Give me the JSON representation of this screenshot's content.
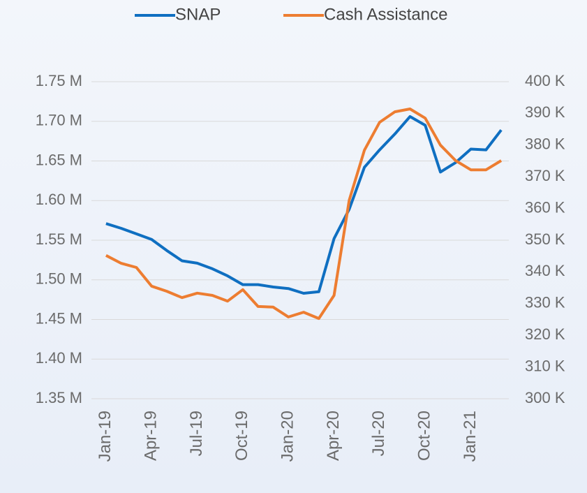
{
  "chart_data": {
    "type": "line",
    "categories": [
      "Jan-19",
      null,
      null,
      "Apr-19",
      null,
      null,
      "Jul-19",
      null,
      null,
      "Oct-19",
      null,
      null,
      "Jan-20",
      null,
      null,
      "Apr-20",
      null,
      null,
      "Jul-20",
      null,
      null,
      "Oct-20",
      null,
      null,
      "Jan-21",
      null,
      null
    ],
    "series": [
      {
        "name": "SNAP",
        "color": "#0f6fc1",
        "values": [
          1571000,
          1565000,
          1558000,
          1551000,
          1537000,
          1524000,
          1521000,
          1514000,
          1505000,
          1494000,
          1494000,
          1491000,
          1489000,
          1483000,
          1485000,
          1552000,
          1589000,
          1642000,
          1664000,
          1684000,
          1706000,
          1695000,
          1636000,
          1648000,
          1665000,
          1664000,
          1689000
        ]
      },
      {
        "name": "Cash Assistance",
        "color": "#ed7d31",
        "axis": "y2",
        "values": [
          345200,
          342700,
          341400,
          335500,
          333900,
          331900,
          333300,
          332600,
          330800,
          334400,
          329100,
          328900,
          325800,
          327300,
          325300,
          332600,
          362600,
          378400,
          387200,
          390500,
          391400,
          388500,
          380000,
          375100,
          372200,
          372200,
          375100
        ]
      }
    ],
    "ylim": [
      1350000,
      1750000
    ],
    "yticks": [
      {
        "value": 1350000,
        "label": "1.35 M"
      },
      {
        "value": 1400000,
        "label": "1.40 M"
      },
      {
        "value": 1450000,
        "label": "1.45 M"
      },
      {
        "value": 1500000,
        "label": "1.50 M"
      },
      {
        "value": 1550000,
        "label": "1.55 M"
      },
      {
        "value": 1600000,
        "label": "1.60 M"
      },
      {
        "value": 1650000,
        "label": "1.65 M"
      },
      {
        "value": 1700000,
        "label": "1.70 M"
      },
      {
        "value": 1750000,
        "label": "1.75 M"
      }
    ],
    "y2lim": [
      300000,
      400000
    ],
    "y2ticks": [
      {
        "value": 300000,
        "label": "300 K"
      },
      {
        "value": 310000,
        "label": "310 K"
      },
      {
        "value": 320000,
        "label": "320 K"
      },
      {
        "value": 330000,
        "label": "330 K"
      },
      {
        "value": 340000,
        "label": "340 K"
      },
      {
        "value": 350000,
        "label": "350 K"
      },
      {
        "value": 360000,
        "label": "360 K"
      },
      {
        "value": 370000,
        "label": "370 K"
      },
      {
        "value": 380000,
        "label": "380 K"
      },
      {
        "value": 390000,
        "label": "390 K"
      },
      {
        "value": 400000,
        "label": "400 K"
      }
    ],
    "grid": true,
    "legend": "top"
  }
}
